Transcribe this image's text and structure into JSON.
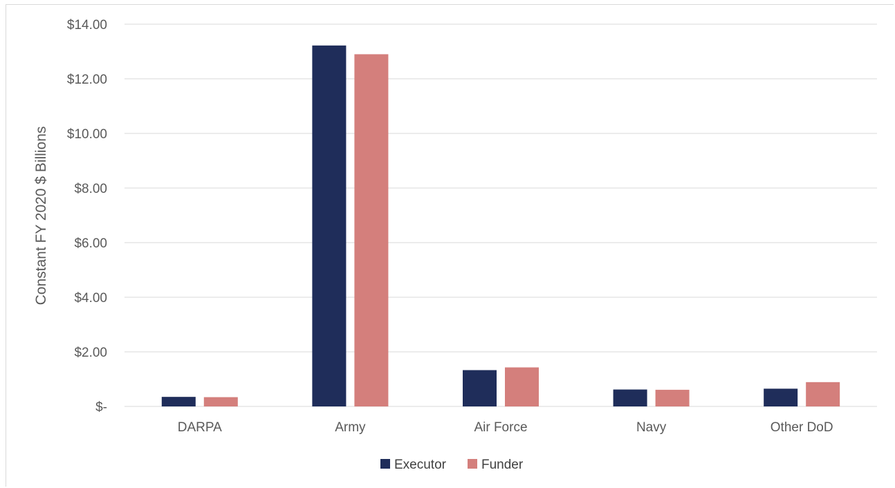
{
  "chart_data": {
    "type": "bar",
    "categories": [
      "DARPA",
      "Army",
      "Air Force",
      "Navy",
      "Other DoD"
    ],
    "series": [
      {
        "name": "Executor",
        "color": "#1f2d5a",
        "values": [
          0.35,
          13.22,
          1.33,
          0.62,
          0.65
        ]
      },
      {
        "name": "Funder",
        "color": "#d47f7c",
        "values": [
          0.34,
          12.9,
          1.43,
          0.61,
          0.89
        ]
      }
    ],
    "ylabel": "Constant FY 2020 $ Billions",
    "ylim": [
      0,
      14
    ],
    "yticks": [
      0,
      2,
      4,
      6,
      8,
      10,
      12,
      14
    ],
    "ytick_labels": [
      "$-",
      "$2.00",
      "$4.00",
      "$6.00",
      "$8.00",
      "$10.00",
      "$12.00",
      "$14.00"
    ],
    "grid": true,
    "gridline_color": "#d9d9d9",
    "legend_position": "bottom"
  }
}
